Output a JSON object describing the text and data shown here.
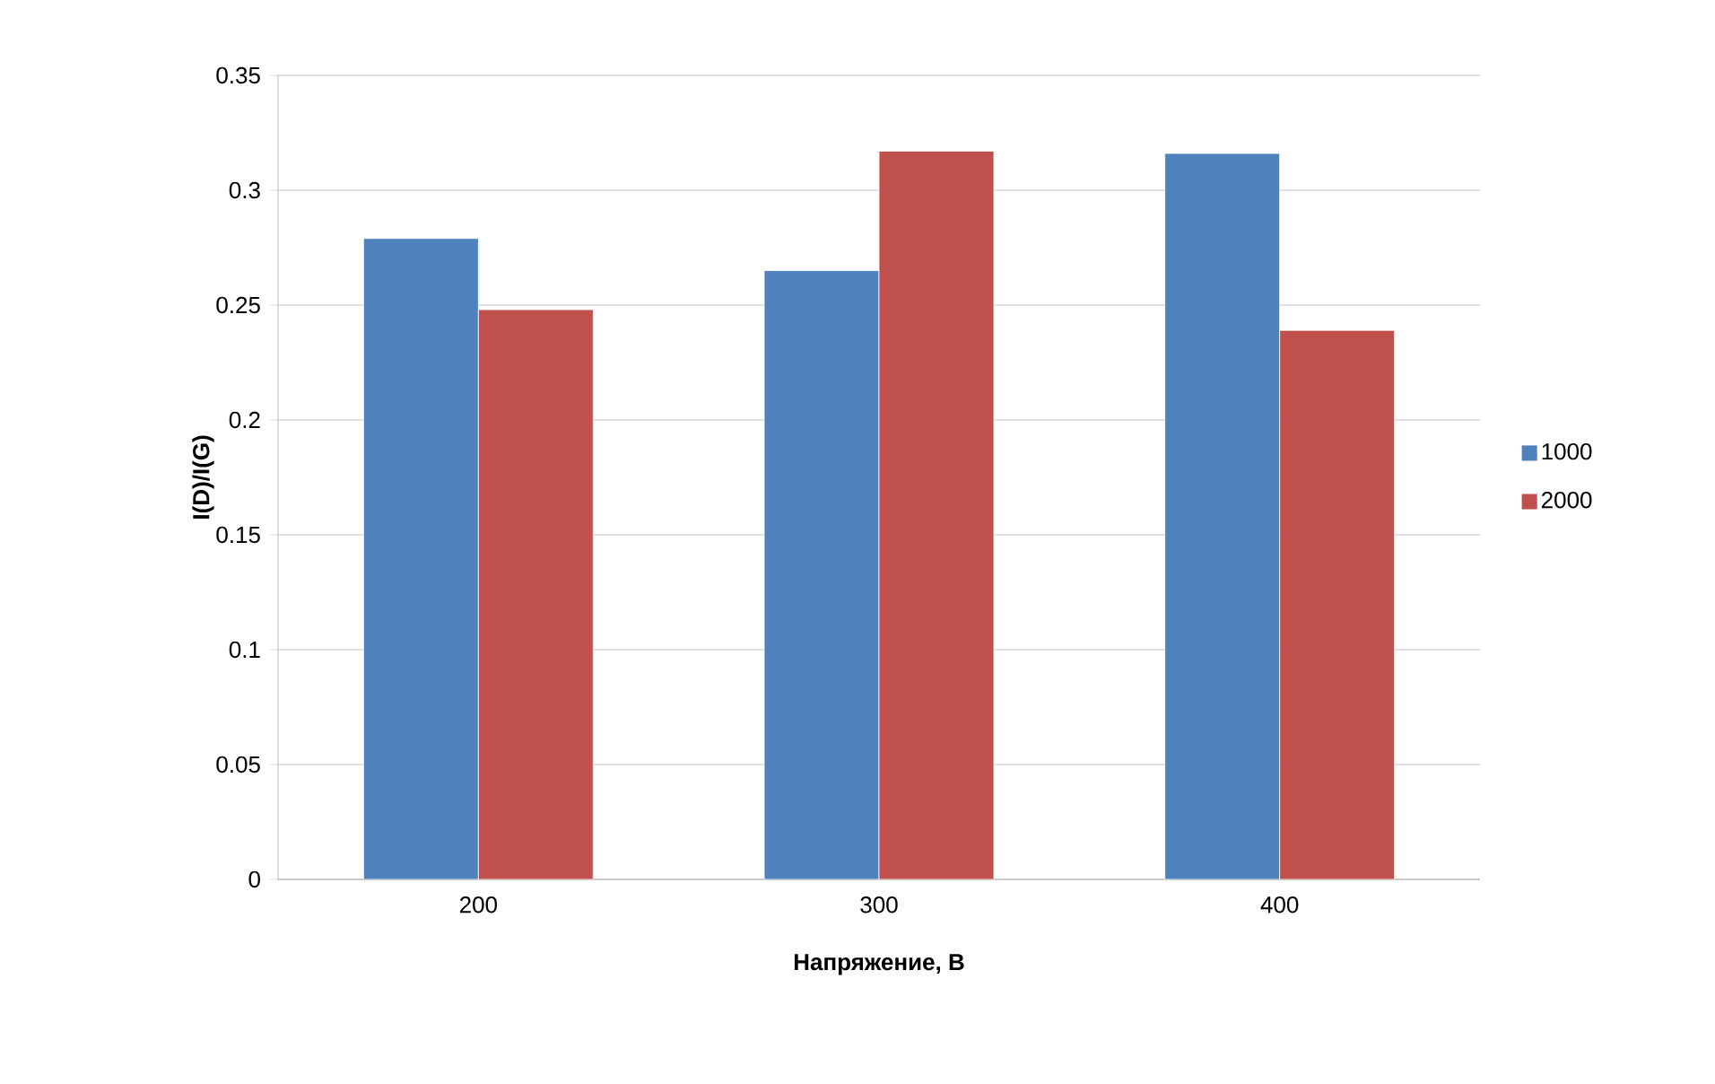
{
  "chart_data": {
    "type": "bar",
    "xlabel": "Напряжение, В",
    "ylabel": "I(D)/I(G)",
    "categories": [
      "200",
      "300",
      "400"
    ],
    "series": [
      {
        "name": "1000",
        "color": "#4f81bd",
        "values": [
          0.279,
          0.265,
          0.316
        ]
      },
      {
        "name": "2000",
        "color": "#c0504d",
        "values": [
          0.248,
          0.317,
          0.239
        ]
      }
    ],
    "ylim": [
      0,
      0.35
    ],
    "yticks": [
      0,
      0.05,
      0.1,
      0.15,
      0.2,
      0.25,
      0.3,
      0.35
    ],
    "grid": "y",
    "legend": "right"
  }
}
